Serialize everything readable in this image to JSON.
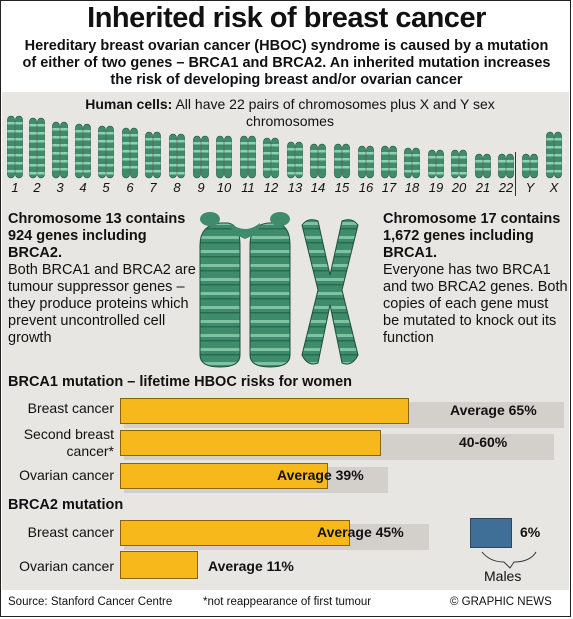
{
  "title": "Inherited risk of breast cancer",
  "subtitle": "Hereditary breast ovarian cancer (HBOC) syndrome is caused by a mutation of either of two genes – BRCA1 and BRCA2. An inherited mutation increases the risk of developing breast and/or ovarian cancer",
  "cells": {
    "label": "Human cells:",
    "text": "All have 22 pairs of chromosomes plus X and Y sex chromosomes"
  },
  "chromosome_labels": [
    "1",
    "2",
    "3",
    "4",
    "5",
    "6",
    "7",
    "8",
    "9",
    "10",
    "11",
    "12",
    "13",
    "14",
    "15",
    "16",
    "17",
    "18",
    "19",
    "20",
    "21",
    "22",
    "Y",
    "X"
  ],
  "chr13": {
    "head": "Chromosome 13 contains 924 genes including BRCA2.",
    "body": "Both BRCA1 and BRCA2 are tumour suppressor genes – they produce proteins which prevent uncontrolled cell growth"
  },
  "chr17": {
    "head": "Chromosome 17 contains 1,672 genes including BRCA1.",
    "body": "Everyone has two BRCA1 and two BRCA2 genes. Both copies of each gene must be mutated to knock out its function"
  },
  "brca1": {
    "title": "BRCA1 mutation – lifetime HBOC risks for women",
    "rows": [
      {
        "label": "Breast cancer",
        "value_text": "Average 65%"
      },
      {
        "label": "Second breast cancer*",
        "value_text": "40-60%"
      },
      {
        "label": "Ovarian cancer",
        "value_text": "Average 39%"
      }
    ]
  },
  "brca2": {
    "title": "BRCA2 mutation",
    "rows": [
      {
        "label": "Breast cancer",
        "value_text": "Average 45%"
      },
      {
        "label": "Ovarian cancer",
        "value_text": "Average 11%"
      }
    ],
    "males_value": "6%",
    "males_label": "Males"
  },
  "chart_data": {
    "type": "bar",
    "groups": [
      {
        "name": "BRCA1 mutation – lifetime HBOC risks for women",
        "categories": [
          "Breast cancer",
          "Second breast cancer*",
          "Ovarian cancer"
        ],
        "values": [
          65,
          60,
          39
        ]
      },
      {
        "name": "BRCA2 mutation",
        "categories": [
          "Breast cancer",
          "Ovarian cancer",
          "Males"
        ],
        "values": [
          45,
          11,
          6
        ]
      }
    ]
  },
  "footer": {
    "source": "Source: Stanford Cancer Centre",
    "note": "*not reappearance of first tumour",
    "credit": "© GRAPHIC NEWS"
  },
  "colors": {
    "bar": "#f7b81c",
    "chromosome": "#3a8a6a",
    "male_bar": "#3f6f96",
    "panel": "#e8e6e3"
  }
}
